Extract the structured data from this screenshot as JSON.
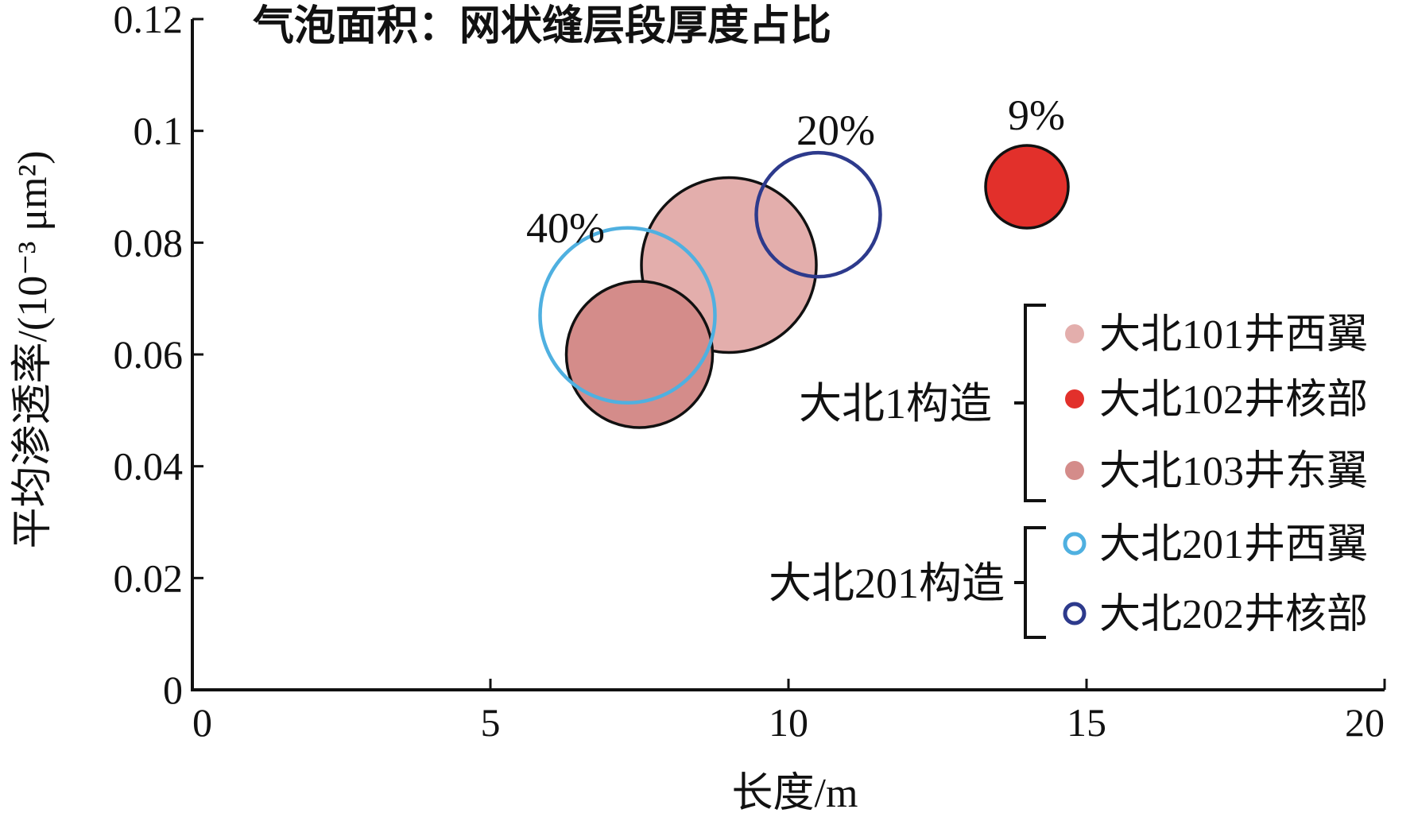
{
  "chart_data": {
    "type": "scatter",
    "title": "气泡面积：网状缝层段厚度占比",
    "xlabel": "长度/m",
    "ylabel": "平均渗透率/(10⁻³ μm²)",
    "xlim": [
      0,
      20
    ],
    "ylim": [
      0,
      0.12
    ],
    "xticks": [
      "0",
      "5",
      "10",
      "15",
      "20"
    ],
    "yticks": [
      "0",
      "0.02",
      "0.04",
      "0.06",
      "0.08",
      "0.1",
      "0.12"
    ],
    "grid": false,
    "bubble_size_meaning": "网状缝层段厚度占比",
    "series": [
      {
        "name": "大北101井西翼",
        "group": "大北1构造",
        "x": 9.0,
        "y": 0.076,
        "size_pct": null,
        "label": "",
        "fill": "#e3aeac",
        "stroke": "#111111",
        "filled": true
      },
      {
        "name": "大北102井核部",
        "group": "大北1构造",
        "x": 14.0,
        "y": 0.09,
        "size_pct": 9,
        "label": "9%",
        "fill": "#e2302b",
        "stroke": "#111111",
        "filled": true
      },
      {
        "name": "大北103井东翼",
        "group": "大北1构造",
        "x": 7.5,
        "y": 0.06,
        "size_pct": null,
        "label": "",
        "fill": "#d48c8a",
        "stroke": "#111111",
        "filled": true
      },
      {
        "name": "大北201井西翼",
        "group": "大北201构造",
        "x": 7.3,
        "y": 0.067,
        "size_pct": 40,
        "label": "40%",
        "fill": "none",
        "stroke": "#4fb0e0",
        "filled": false
      },
      {
        "name": "大北202井核部",
        "group": "大北201构造",
        "x": 10.5,
        "y": 0.085,
        "size_pct": 20,
        "label": "20%",
        "fill": "none",
        "stroke": "#2d3a8c",
        "filled": false
      }
    ],
    "legend": {
      "placement": "right",
      "groups": [
        {
          "label": "大北1构造",
          "items": [
            "大北101井西翼",
            "大北102井核部",
            "大北103井东翼"
          ]
        },
        {
          "label": "大北201构造",
          "items": [
            "大北201井西翼",
            "大北202井核部"
          ]
        }
      ]
    }
  }
}
